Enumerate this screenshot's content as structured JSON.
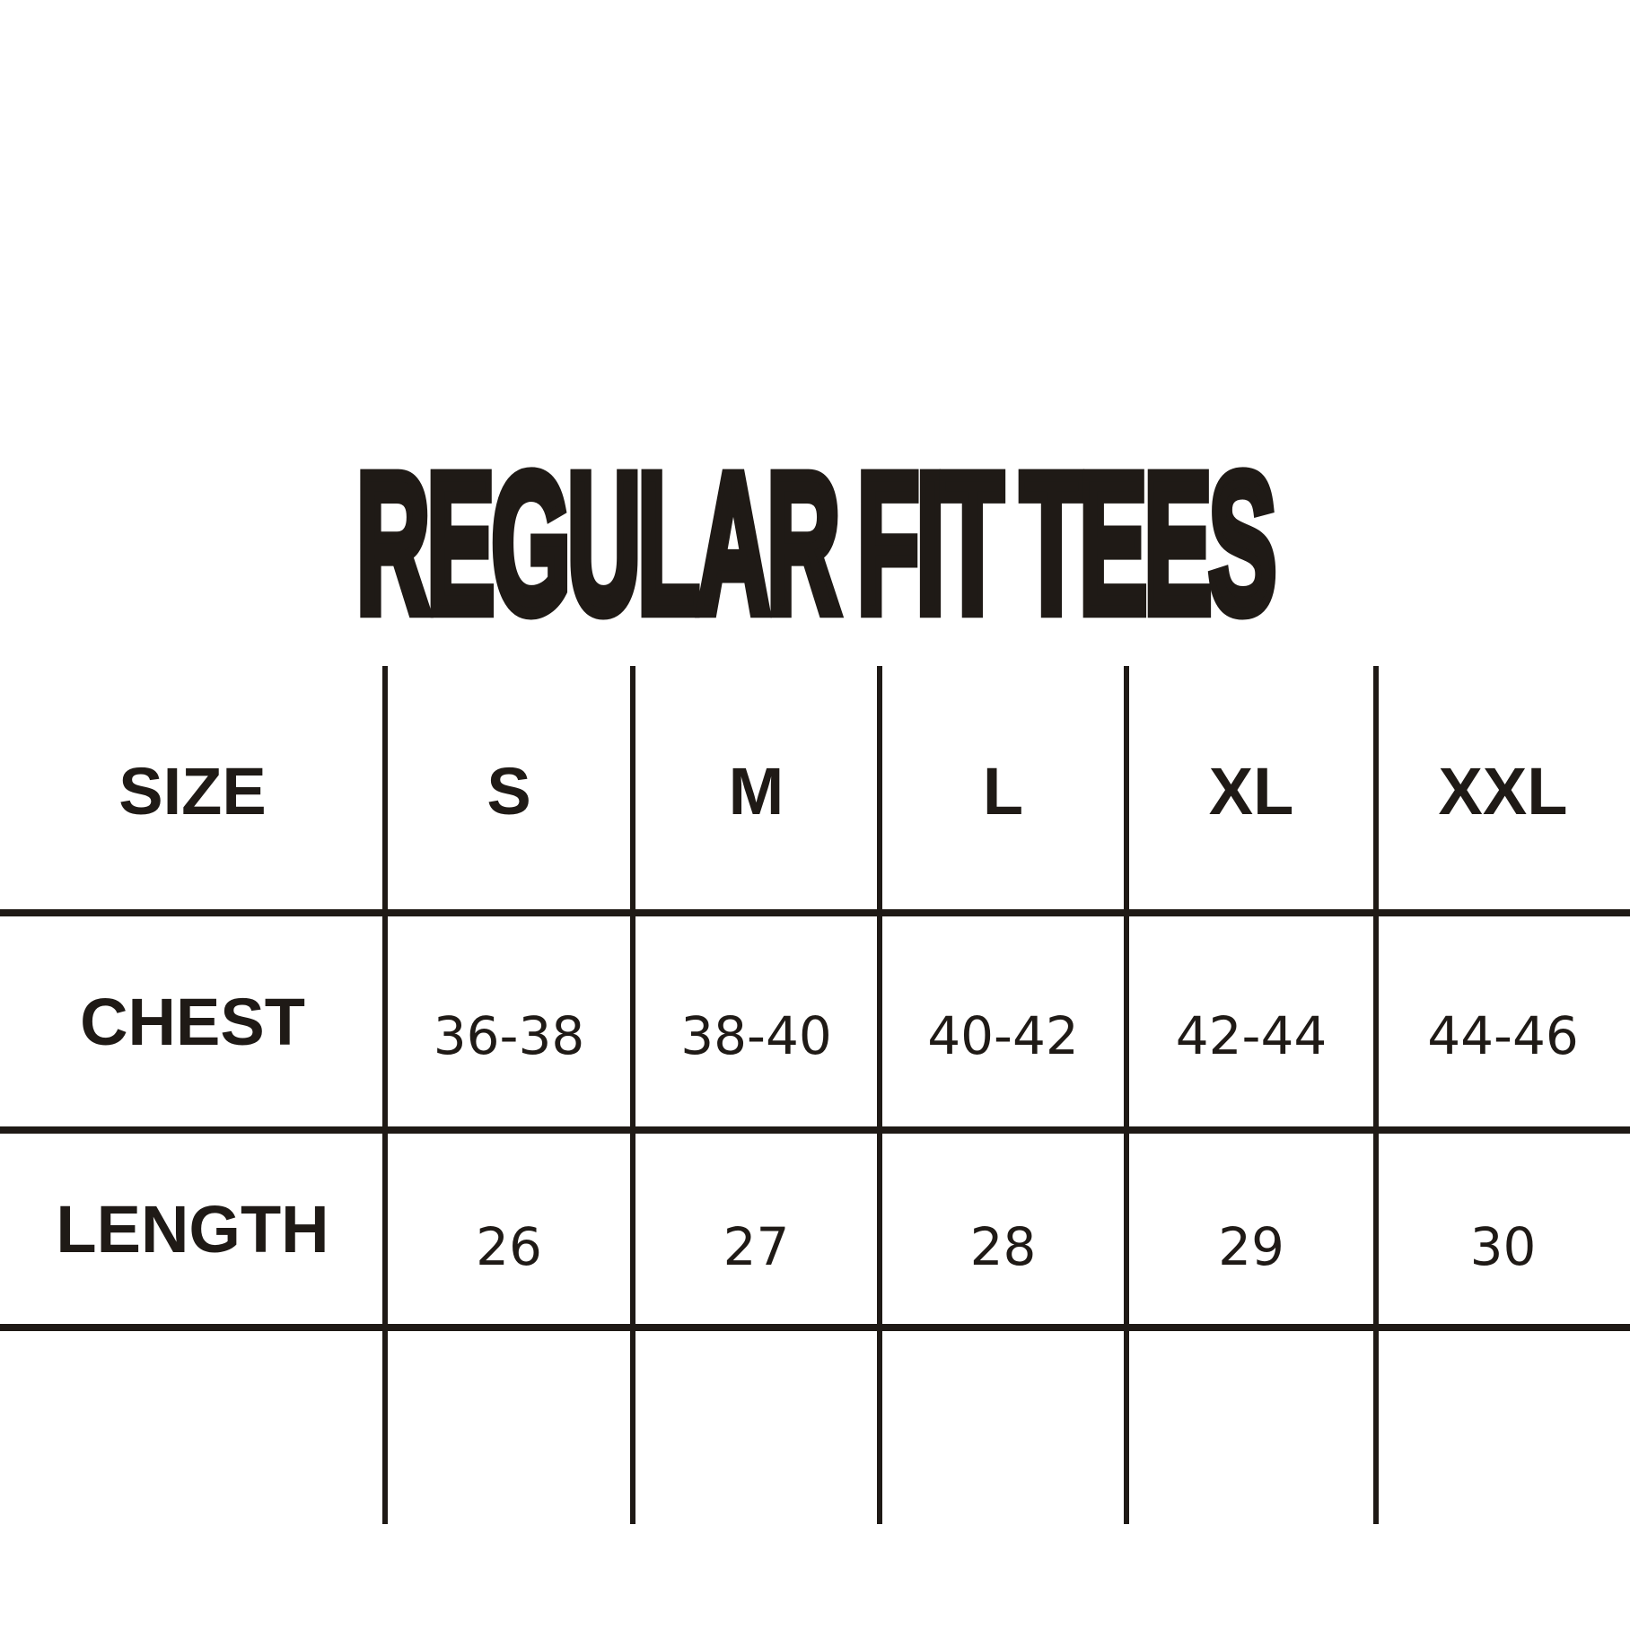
{
  "colors": {
    "background": "#ffffff",
    "ink": "#1f1a16"
  },
  "chart_data": {
    "type": "table",
    "title": "REGULAR FIT TEES",
    "columns": [
      "SIZE",
      "S",
      "M",
      "L",
      "XL",
      "XXL"
    ],
    "rows": [
      [
        "CHEST",
        "36-38",
        "38-40",
        "40-42",
        "42-44",
        "44-46"
      ],
      [
        "LENGTH",
        "26",
        "27",
        "28",
        "29",
        "30"
      ]
    ]
  }
}
